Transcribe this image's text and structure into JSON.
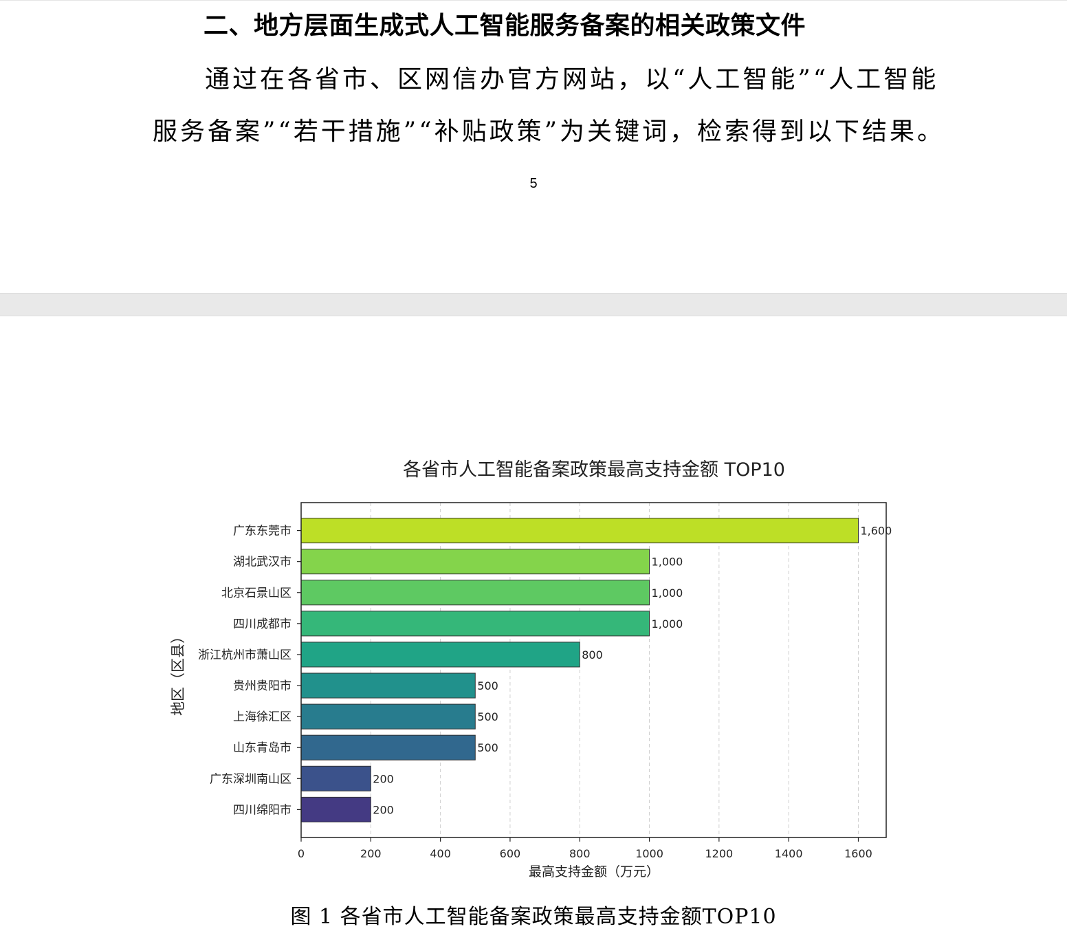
{
  "document": {
    "heading": "二、地方层面生成式人工智能服务备案的相关政策文件",
    "paragraph_line1": "通过在各省市、区网信办官方网站，以“人工智能”“人工智能",
    "paragraph_line2": "服务备案”“若干措施”“补贴政策”为关键词，检索得到以下结果。",
    "page_number": "5",
    "figure_caption": "图 1 各省市人工智能备案政策最高支持金额TOP10"
  },
  "chart_data": {
    "type": "bar",
    "orientation": "horizontal",
    "title": "各省市人工智能备案政策最高支持金额 TOP10",
    "xlabel": "最高支持金额（万元）",
    "ylabel": "地区（区县）",
    "categories": [
      "广东东莞市",
      "湖北武汉市",
      "北京石景山区",
      "四川成都市",
      "浙江杭州市萧山区",
      "贵州贵阳市",
      "上海徐汇区",
      "山东青岛市",
      "广东深圳南山区",
      "四川绵阳市"
    ],
    "values": [
      1600,
      1000,
      1000,
      1000,
      800,
      500,
      500,
      500,
      200,
      200
    ],
    "value_labels": [
      "1,600",
      "1,000",
      "1,000",
      "1,000",
      "800",
      "500",
      "500",
      "500",
      "200",
      "200"
    ],
    "colors": [
      "#bddf26",
      "#84d44b",
      "#5ec962",
      "#35b779",
      "#20a486",
      "#21918c",
      "#287c8e",
      "#31688e",
      "#3b528b",
      "#443a83"
    ],
    "xlim": [
      0,
      1680
    ],
    "xticks": [
      0,
      200,
      400,
      600,
      800,
      1000,
      1200,
      1400,
      1600
    ],
    "xtick_labels": [
      "0",
      "200",
      "400",
      "600",
      "800",
      "1000",
      "1200",
      "1400",
      "1600"
    ],
    "grid": "x-dashed",
    "legend": "none"
  }
}
